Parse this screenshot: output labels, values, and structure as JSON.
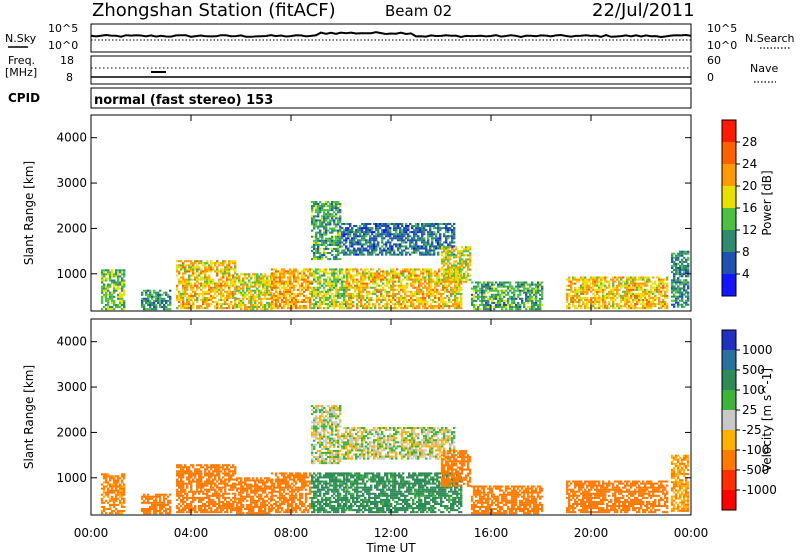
{
  "header": {
    "station": "Zhongshan Station (fitACF)",
    "beam": "Beam 02",
    "date": "22/Jul/2011"
  },
  "status_panels": {
    "nsky_label": "N.Sky",
    "nsky_axis_top": "10^5",
    "nsky_axis_bottom": "10^0",
    "nsearch_label": "N.Search",
    "freq_label_1": "Freq.",
    "freq_label_2": "[MHz]",
    "freq_axis_top": "18",
    "freq_axis_bottom": "8",
    "nave_label": "Nave",
    "nave_axis_top": "60",
    "nave_axis_bottom": "0",
    "cpid_label": "CPID",
    "cpid_text": "normal (fast stereo) 153"
  },
  "x_axis": {
    "label": "Time UT",
    "ticks": [
      "00:00",
      "04:00",
      "08:00",
      "12:00",
      "16:00",
      "20:00",
      "00:00"
    ]
  },
  "power_colorbar": {
    "label": "Power [dB]",
    "ticks": [
      "4",
      "8",
      "12",
      "16",
      "20",
      "24",
      "28"
    ],
    "colors": [
      "#1414ff",
      "#2050b0",
      "#2e8b6e",
      "#4dc041",
      "#e8e000",
      "#ff9a00",
      "#ff6000",
      "#ff1a00"
    ]
  },
  "velocity_colorbar": {
    "label": "Velocity [m s^-1]",
    "ticks": [
      "1000",
      "500",
      "100",
      "25",
      "-25",
      "-100",
      "-500",
      "-1000"
    ],
    "colors": [
      "#2030c0",
      "#2870a0",
      "#2e8b57",
      "#3cb43c",
      "#c8c8c8",
      "#ffb000",
      "#ff7a00",
      "#ff3000",
      "#ff0000"
    ]
  },
  "chart_data": [
    {
      "type": "heatmap",
      "title": "Power",
      "xlabel": "Time UT",
      "ylabel": "Slant Range [km]",
      "x_range_hours": [
        0,
        24
      ],
      "ylim": [
        180,
        4500
      ],
      "yticks": [
        1000,
        2000,
        3000,
        4000
      ],
      "colorbar_label": "Power [dB]",
      "colorbar_ticks": [
        4,
        8,
        12,
        16,
        20,
        24,
        28
      ],
      "regions": [
        {
          "t": [
            0.4,
            1.3
          ],
          "r": [
            200,
            1100
          ],
          "v": 14
        },
        {
          "t": [
            2.0,
            3.2
          ],
          "r": [
            200,
            650
          ],
          "v": 10
        },
        {
          "t": [
            3.4,
            5.8
          ],
          "r": [
            220,
            1300
          ],
          "v": 20
        },
        {
          "t": [
            5.8,
            7.2
          ],
          "r": [
            200,
            1000
          ],
          "v": 18
        },
        {
          "t": [
            7.2,
            8.8
          ],
          "r": [
            220,
            1100
          ],
          "v": 22
        },
        {
          "t": [
            8.8,
            10.2
          ],
          "r": [
            220,
            1100
          ],
          "v": 16
        },
        {
          "t": [
            8.8,
            10.0
          ],
          "r": [
            1300,
            2600
          ],
          "v": 12
        },
        {
          "t": [
            10.0,
            14.5
          ],
          "r": [
            1400,
            2100
          ],
          "v": 8
        },
        {
          "t": [
            10.2,
            14.8
          ],
          "r": [
            220,
            1100
          ],
          "v": 20
        },
        {
          "t": [
            14.0,
            15.2
          ],
          "r": [
            800,
            1600
          ],
          "v": 18
        },
        {
          "t": [
            15.2,
            18.0
          ],
          "r": [
            200,
            800
          ],
          "v": 12
        },
        {
          "t": [
            19.0,
            23.0
          ],
          "r": [
            220,
            900
          ],
          "v": 20
        },
        {
          "t": [
            23.2,
            23.9
          ],
          "r": [
            250,
            1500
          ],
          "v": 10
        }
      ]
    },
    {
      "type": "heatmap",
      "title": "Velocity",
      "xlabel": "Time UT",
      "ylabel": "Slant Range [km]",
      "x_range_hours": [
        0,
        24
      ],
      "ylim": [
        180,
        4500
      ],
      "yticks": [
        1000,
        2000,
        3000,
        4000
      ],
      "colorbar_label": "Velocity [m s^-1]",
      "colorbar_ticks": [
        1000,
        500,
        100,
        25,
        -25,
        -100,
        -500,
        -1000
      ],
      "regions": [
        {
          "t": [
            0.4,
            1.3
          ],
          "r": [
            200,
            1100
          ],
          "v": -150
        },
        {
          "t": [
            2.0,
            3.2
          ],
          "r": [
            200,
            650
          ],
          "v": -200
        },
        {
          "t": [
            3.4,
            5.8
          ],
          "r": [
            220,
            1300
          ],
          "v": -300
        },
        {
          "t": [
            5.8,
            7.2
          ],
          "r": [
            200,
            1000
          ],
          "v": -300
        },
        {
          "t": [
            7.2,
            8.8
          ],
          "r": [
            220,
            1100
          ],
          "v": -250
        },
        {
          "t": [
            8.8,
            10.2
          ],
          "r": [
            220,
            1100
          ],
          "v": 150
        },
        {
          "t": [
            8.8,
            10.0
          ],
          "r": [
            1300,
            2600
          ],
          "v": 0
        },
        {
          "t": [
            10.0,
            14.5
          ],
          "r": [
            1400,
            2100
          ],
          "v": 0
        },
        {
          "t": [
            10.2,
            14.8
          ],
          "r": [
            220,
            1100
          ],
          "v": 150
        },
        {
          "t": [
            14.0,
            15.2
          ],
          "r": [
            800,
            1600
          ],
          "v": -200
        },
        {
          "t": [
            15.2,
            18.0
          ],
          "r": [
            200,
            800
          ],
          "v": -350
        },
        {
          "t": [
            19.0,
            23.0
          ],
          "r": [
            220,
            900
          ],
          "v": -300
        },
        {
          "t": [
            23.2,
            23.9
          ],
          "r": [
            250,
            1500
          ],
          "v": -100
        }
      ]
    }
  ]
}
